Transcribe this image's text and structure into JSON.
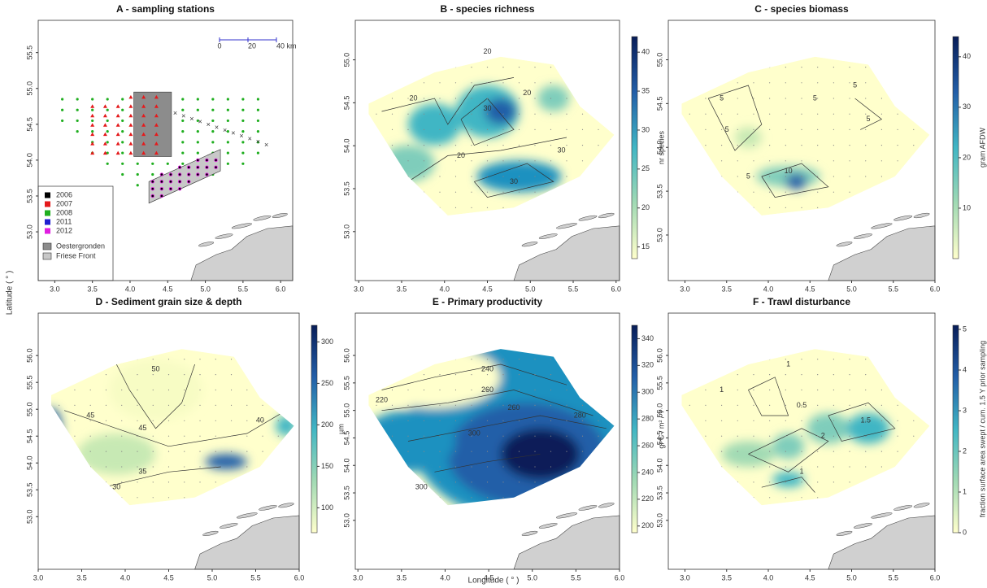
{
  "axis_labels": {
    "x": "Longitude ( ° )",
    "y": "Latitude ( ° )"
  },
  "panels": [
    {
      "title": "A - sampling stations",
      "xlim": [
        2.78,
        6.16
      ],
      "ylim": [
        52.32,
        55.95
      ],
      "xticks": [
        {
          "value": 3.0,
          "label": "3.0"
        },
        {
          "value": 3.5,
          "label": "3.5"
        },
        {
          "value": 4.0,
          "label": "4.0"
        },
        {
          "value": 4.5,
          "label": "4.5"
        },
        {
          "value": 5.0,
          "label": "5.0"
        },
        {
          "value": 5.5,
          "label": "5.5"
        },
        {
          "value": 6.0,
          "label": "6.0"
        }
      ],
      "yticks": [
        {
          "value": 53.0,
          "label": "53.0"
        },
        {
          "value": 53.5,
          "label": "53.5"
        },
        {
          "value": 54.0,
          "label": "54.0"
        },
        {
          "value": 54.5,
          "label": "54.5"
        },
        {
          "value": 55.0,
          "label": "55.0"
        },
        {
          "value": 55.5,
          "label": "55.5"
        }
      ],
      "legend": [
        {
          "name": "2006",
          "color": "#000000"
        },
        {
          "name": "2007",
          "color": "#e41a1c"
        },
        {
          "name": "2008",
          "color": "#1fae1f"
        },
        {
          "name": "2011",
          "color": "#1f1fd0"
        },
        {
          "name": "2012",
          "color": "#e01ee0"
        }
      ],
      "areas": [
        {
          "name": "Oestergronden",
          "color": "#8c8c8c"
        },
        {
          "name": "Friese Front",
          "color": "#c8c8c8"
        }
      ],
      "scale_bar": [
        "0",
        "20",
        "40 km"
      ]
    },
    {
      "title": "B - species richness",
      "xlim": [
        2.96,
        6.04
      ],
      "ylim": [
        52.43,
        55.46
      ],
      "xticks": [
        {
          "value": 3.0,
          "label": "3.0"
        },
        {
          "value": 3.5,
          "label": "3.5"
        },
        {
          "value": 4.0,
          "label": "4.0"
        },
        {
          "value": 4.5,
          "label": "4.5"
        },
        {
          "value": 5.0,
          "label": "5.0"
        },
        {
          "value": 5.5,
          "label": "5.5"
        },
        {
          "value": 6.0,
          "label": "6.0"
        }
      ],
      "yticks": [
        {
          "value": 53.0,
          "label": "53.0"
        },
        {
          "value": 53.5,
          "label": "53.5"
        },
        {
          "value": 54.0,
          "label": "54.0"
        },
        {
          "value": 54.5,
          "label": "54.5"
        },
        {
          "value": 55.0,
          "label": "55.0"
        }
      ],
      "colorbar": {
        "label": "nr species",
        "lim": [
          13.5,
          42
        ],
        "ticks": [
          15,
          20,
          25,
          30,
          35,
          40
        ],
        "colors": [
          "#ffffcc",
          "#a1dab4",
          "#41b6c4",
          "#225ea8",
          "#081d58"
        ]
      },
      "contour_labels": [
        "20",
        "20",
        "30",
        "30",
        "20",
        "20",
        "30"
      ]
    },
    {
      "title": "C - species biomass",
      "xlim": [
        2.8,
        6.0
      ],
      "ylim": [
        52.48,
        55.45
      ],
      "xticks": [
        {
          "value": 3.0,
          "label": "3.0"
        },
        {
          "value": 3.5,
          "label": "3.5"
        },
        {
          "value": 4.0,
          "label": "4.0"
        },
        {
          "value": 4.5,
          "label": "4.5"
        },
        {
          "value": 5.0,
          "label": "5.0"
        },
        {
          "value": 5.5,
          "label": "5.5"
        },
        {
          "value": 6.0,
          "label": "6.0"
        }
      ],
      "yticks": [
        {
          "value": 53.0,
          "label": "53.0"
        },
        {
          "value": 53.5,
          "label": "53.5"
        },
        {
          "value": 54.0,
          "label": "54.0"
        },
        {
          "value": 54.5,
          "label": "54.5"
        },
        {
          "value": 55.0,
          "label": "55.0"
        }
      ],
      "colorbar": {
        "label": "gram AFDW",
        "lim": [
          0,
          44
        ],
        "ticks": [
          10,
          20,
          30,
          40
        ],
        "colors": [
          "#ffffcc",
          "#a1dab4",
          "#41b6c4",
          "#225ea8",
          "#081d58"
        ]
      },
      "contour_labels": [
        "5",
        "5",
        "5",
        "5",
        "10",
        "5",
        "5"
      ]
    },
    {
      "title": "D - Sediment grain size & depth",
      "xlim": [
        3.0,
        6.0
      ],
      "ylim": [
        52.02,
        56.79
      ],
      "xticks": [
        {
          "value": 3.0,
          "label": "3.0"
        },
        {
          "value": 3.5,
          "label": "3.5"
        },
        {
          "value": 4.0,
          "label": "4.0"
        },
        {
          "value": 4.5,
          "label": "4.5"
        },
        {
          "value": 5.0,
          "label": "5.0"
        },
        {
          "value": 5.5,
          "label": "5.5"
        },
        {
          "value": 6.0,
          "label": "6.0"
        }
      ],
      "yticks": [
        {
          "value": 53.0,
          "label": "53.0"
        },
        {
          "value": 53.5,
          "label": "53.5"
        },
        {
          "value": 54.0,
          "label": "54.0"
        },
        {
          "value": 54.5,
          "label": "54.5"
        },
        {
          "value": 55.0,
          "label": "55.0"
        },
        {
          "value": 55.5,
          "label": "55.5"
        },
        {
          "value": 56.0,
          "label": "56.0"
        }
      ],
      "colorbar": {
        "label": "µm",
        "lim": [
          70,
          320
        ],
        "ticks": [
          100,
          150,
          200,
          250,
          300
        ],
        "colors": [
          "#ffffcc",
          "#a1dab4",
          "#41b6c4",
          "#225ea8",
          "#081d58"
        ]
      },
      "contour_labels": [
        "50",
        "45",
        "45",
        "40",
        "35",
        "30"
      ]
    },
    {
      "title": "E - Primary productivity",
      "xlim": [
        2.97,
        6.0
      ],
      "ylim": [
        52.11,
        56.77
      ],
      "xticks": [
        {
          "value": 3.0,
          "label": "3.0"
        },
        {
          "value": 3.5,
          "label": "3.5"
        },
        {
          "value": 4.0,
          "label": "4.0"
        },
        {
          "value": 4.5,
          "label": "4.5"
        },
        {
          "value": 5.0,
          "label": "5.0"
        },
        {
          "value": 5.5,
          "label": "5.5"
        },
        {
          "value": 6.0,
          "label": "6.0"
        }
      ],
      "yticks": [
        {
          "value": 53.0,
          "label": "53.0"
        },
        {
          "value": 53.5,
          "label": "53.5"
        },
        {
          "value": 54.0,
          "label": "54.0"
        },
        {
          "value": 54.5,
          "label": "54.5"
        },
        {
          "value": 55.0,
          "label": "55.0"
        },
        {
          "value": 55.5,
          "label": "55.5"
        },
        {
          "value": 56.0,
          "label": "56.0"
        }
      ],
      "colorbar": {
        "label": "gr C / m² / Y",
        "lim": [
          195,
          350
        ],
        "ticks": [
          200,
          220,
          240,
          260,
          280,
          300,
          320,
          340
        ],
        "colors": [
          "#ffffcc",
          "#a1dab4",
          "#41b6c4",
          "#225ea8",
          "#081d58"
        ]
      },
      "contour_labels": [
        "220",
        "240",
        "260",
        "260",
        "280",
        "300",
        "300"
      ]
    },
    {
      "title": "F - Trawl disturbance",
      "xlim": [
        2.8,
        6.0
      ],
      "ylim": [
        52.11,
        56.77
      ],
      "xticks": [
        {
          "value": 3.0,
          "label": "3.0"
        },
        {
          "value": 3.5,
          "label": "3.5"
        },
        {
          "value": 4.0,
          "label": "4.0"
        },
        {
          "value": 4.5,
          "label": "4.5"
        },
        {
          "value": 5.0,
          "label": "5.0"
        },
        {
          "value": 5.5,
          "label": "5.5"
        },
        {
          "value": 6.0,
          "label": "6.0"
        }
      ],
      "yticks": [
        {
          "value": 53.0,
          "label": "53.0"
        },
        {
          "value": 53.5,
          "label": "53.5"
        },
        {
          "value": 54.0,
          "label": "54.0"
        },
        {
          "value": 54.5,
          "label": "54.5"
        },
        {
          "value": 55.0,
          "label": "55.0"
        },
        {
          "value": 55.5,
          "label": "55.5"
        },
        {
          "value": 56.0,
          "label": "56.0"
        }
      ],
      "colorbar": {
        "label": "fraction surface area swept / cum. 1.5 Y prior sampling",
        "lim": [
          0,
          5.1
        ],
        "ticks": [
          0,
          1,
          2,
          3,
          4,
          5
        ],
        "colors": [
          "#ffffcc",
          "#a1dab4",
          "#41b6c4",
          "#225ea8",
          "#081d58"
        ]
      },
      "contour_labels": [
        "1",
        "1",
        "0.5",
        "2",
        "1.5",
        "1"
      ]
    }
  ]
}
